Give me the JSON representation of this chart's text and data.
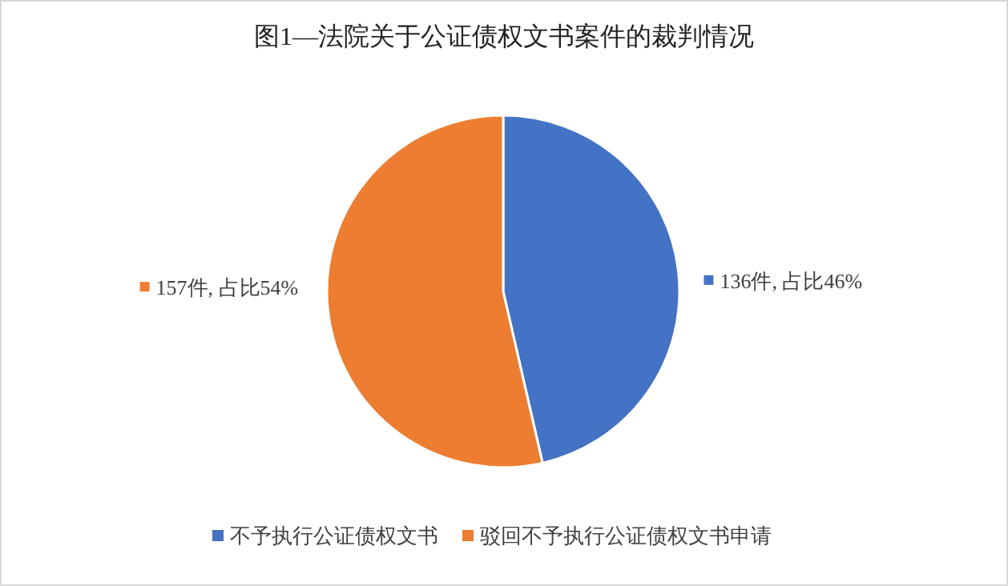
{
  "chart_data": {
    "type": "pie",
    "title": "图1—法院关于公证债权文书案件的裁判情况",
    "categories": [
      "不予执行公证债权文书",
      "驳回不予执行公证债权文书申请"
    ],
    "values": [
      136,
      157
    ],
    "colors": [
      "#4472c4",
      "#ed7d31"
    ],
    "value_labels": [
      "136件, 占比46%",
      "157件, 占比54%"
    ],
    "legend": "bottom"
  }
}
